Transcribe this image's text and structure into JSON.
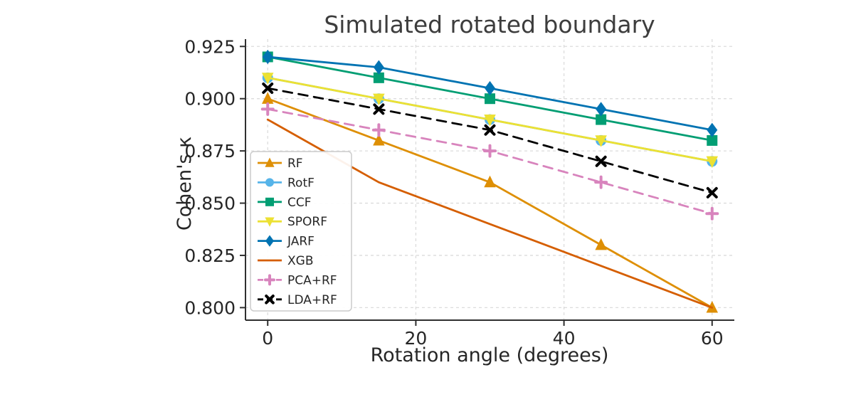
{
  "chart_data": {
    "type": "line",
    "title": "Simulated rotated boundary",
    "xlabel": "Rotation angle (degrees)",
    "ylabel": "Cohen's κ",
    "x": [
      0,
      15,
      30,
      45,
      60
    ],
    "xticks": [
      0,
      20,
      40,
      60
    ],
    "yticks": [
      0.8,
      0.825,
      0.85,
      0.875,
      0.9,
      0.925
    ],
    "xlim": [
      -3,
      63
    ],
    "ylim": [
      0.794,
      0.9285
    ],
    "grid": true,
    "legend_position": "center left",
    "series": [
      {
        "name": "RF",
        "values": [
          0.9,
          0.88,
          0.86,
          0.83,
          0.8
        ],
        "color": "#de8f05",
        "marker": "triangle-up",
        "linestyle": "solid"
      },
      {
        "name": "RotF",
        "values": [
          0.91,
          0.9,
          0.89,
          0.88,
          0.87
        ],
        "color": "#56b4e9",
        "marker": "circle",
        "linestyle": "solid"
      },
      {
        "name": "CCF",
        "values": [
          0.92,
          0.91,
          0.9,
          0.89,
          0.88
        ],
        "color": "#029e73",
        "marker": "square",
        "linestyle": "solid"
      },
      {
        "name": "SPORF",
        "values": [
          0.91,
          0.9,
          0.89,
          0.88,
          0.87
        ],
        "color": "#ece133",
        "marker": "triangle-down",
        "linestyle": "solid"
      },
      {
        "name": "JARF",
        "values": [
          0.92,
          0.915,
          0.905,
          0.895,
          0.885
        ],
        "color": "#0173b2",
        "marker": "diamond",
        "linestyle": "solid"
      },
      {
        "name": "XGB",
        "values": [
          0.89,
          0.86,
          0.84,
          0.82,
          0.8
        ],
        "color": "#d55e00",
        "marker": "none",
        "linestyle": "solid"
      },
      {
        "name": "PCA+RF",
        "values": [
          0.895,
          0.885,
          0.875,
          0.86,
          0.845
        ],
        "color": "#d884bd",
        "marker": "plus",
        "linestyle": "dashed"
      },
      {
        "name": "LDA+RF",
        "values": [
          0.905,
          0.895,
          0.885,
          0.87,
          0.855
        ],
        "color": "#000000",
        "marker": "x",
        "linestyle": "dashed"
      }
    ]
  }
}
